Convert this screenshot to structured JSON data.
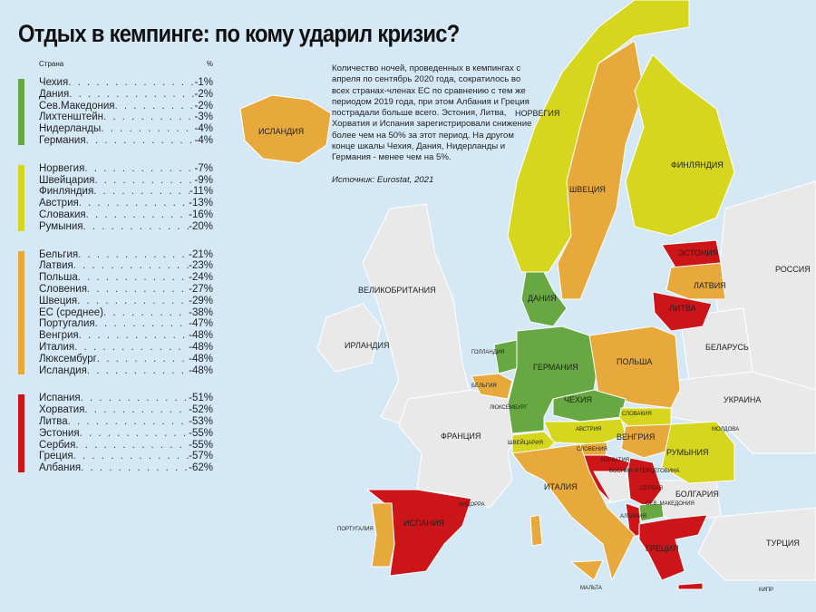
{
  "title": "Отдых в кемпинге: по кому ударил кризис?",
  "legend": {
    "header_country": "Страна",
    "header_unit": "%",
    "groups": [
      {
        "color": "#67a843",
        "items": [
          {
            "country": "Чехия",
            "value": "-1%"
          },
          {
            "country": "Дания",
            "value": "-2%"
          },
          {
            "country": "Сев.Македония",
            "value": "-2%"
          },
          {
            "country": "Лихтенштейн",
            "value": "-3%"
          },
          {
            "country": "Нидерланды",
            "value": "-4%"
          },
          {
            "country": "Германия",
            "value": "-4%"
          }
        ]
      },
      {
        "color": "#d6d61f",
        "items": [
          {
            "country": "Норвегия",
            "value": "-7%"
          },
          {
            "country": "Швейцария",
            "value": "-9%"
          },
          {
            "country": "Финляндия",
            "value": "-11%"
          },
          {
            "country": "Австрия",
            "value": "-13%"
          },
          {
            "country": "Словакия",
            "value": "-16%"
          },
          {
            "country": "Румыния",
            "value": "-20%"
          }
        ]
      },
      {
        "color": "#e8a93c",
        "items": [
          {
            "country": "Бельгия",
            "value": "-21%"
          },
          {
            "country": "Латвия",
            "value": "-23%"
          },
          {
            "country": "Польша",
            "value": "-24%"
          },
          {
            "country": "Словения",
            "value": "-27%"
          },
          {
            "country": "Швеция",
            "value": "-29%"
          },
          {
            "country": "ЕС (среднее)",
            "value": "-38%"
          },
          {
            "country": "Португалия",
            "value": "-47%"
          },
          {
            "country": "Венгрия",
            "value": "-48%"
          },
          {
            "country": "Италия",
            "value": "-48%"
          },
          {
            "country": "Люксембург",
            "value": "-48%"
          },
          {
            "country": "Исландия",
            "value": "-48%"
          }
        ]
      },
      {
        "color": "#cc1518",
        "items": [
          {
            "country": "Испания",
            "value": "-51%"
          },
          {
            "country": "Хорватия",
            "value": "-52%"
          },
          {
            "country": "Литва",
            "value": "-53%"
          },
          {
            "country": "Эстония",
            "value": "-55%"
          },
          {
            "country": "Сербия",
            "value": "-55%"
          },
          {
            "country": "Греция",
            "value": "-57%"
          },
          {
            "country": "Албания",
            "value": "-62%"
          }
        ]
      }
    ]
  },
  "note": {
    "text": "Количество ночей, проведенных в кемпингах с апреля по сентябрь 2020 года, сократилось во всех странах-членах ЕС по сравнению с тем же периодом 2019 года, при этом Албания и Греция пострадали больше всего. Эстония, Литва, Хорватия и Испания зарегистрировали снижение более чем на 50% за этот период. На другом конце шкалы Чехия, Дания, Нидерланды и Германия - менее чем на 5%.",
    "source": "Источник: Eurostat, 2021"
  },
  "colors": {
    "sea": "#d5e8f6",
    "land_other": "#e9e9e9",
    "green": "#67a843",
    "yellow": "#d6d61f",
    "orange": "#e8a93c",
    "red": "#cc1518"
  },
  "map_labels": {
    "iceland": "ИСЛАНДИЯ",
    "norway": "НОРВЕГИЯ",
    "sweden": "ШВЕЦИЯ",
    "finland": "ФИНЛЯНДИЯ",
    "estonia": "ЭСТОНИЯ",
    "latvia": "ЛАТВИЯ",
    "lithuania": "ЛИТВА",
    "russia": "РОССИЯ",
    "uk": "ВЕЛИКОБРИТАНИЯ",
    "ireland": "ИРЛАНДИЯ",
    "denmark": "ДАНИЯ",
    "netherlands": "ГОЛЛАНДИЯ",
    "germany": "ГЕРМАНИЯ",
    "poland": "ПОЛЬША",
    "belarus": "БЕЛАРУСЬ",
    "belgium": "БЕЛЬГИЯ",
    "luxembourg": "ЛЮКСЕМБУРГ",
    "czechia": "ЧЕХИЯ",
    "ukraine": "УКРАИНА",
    "slovakia": "СЛОВАКИЯ",
    "moldova": "МОЛДОВА",
    "france": "ФРАНЦИЯ",
    "austria": "АВСТРИЯ",
    "switzerland": "ШВЕЙЦАРИЯ",
    "hungary": "ВЕНГРИЯ",
    "romania": "РУМЫНИЯ",
    "slovenia": "СЛОВЕНИЯ",
    "croatia": "ХОРВАТИЯ",
    "bosnia": "БОСНИЯ И ГЕРЦЕГОВИНА",
    "serbia": "СЕРБИЯ",
    "italy": "ИТАЛИЯ",
    "bulgaria": "БОЛГАРИЯ",
    "andorra": "АНДОРРА",
    "north_macedonia": "СЕВ. МАКЕДОНИЯ",
    "albania": "АЛБАНИЯ",
    "portugal": "ПОРТУГАЛИЯ",
    "spain": "ИСПАНИЯ",
    "greece": "ГРЕЦИЯ",
    "turkey": "ТУРЦИЯ",
    "malta": "МАЛЬТА",
    "cyprus": "КИПР"
  }
}
